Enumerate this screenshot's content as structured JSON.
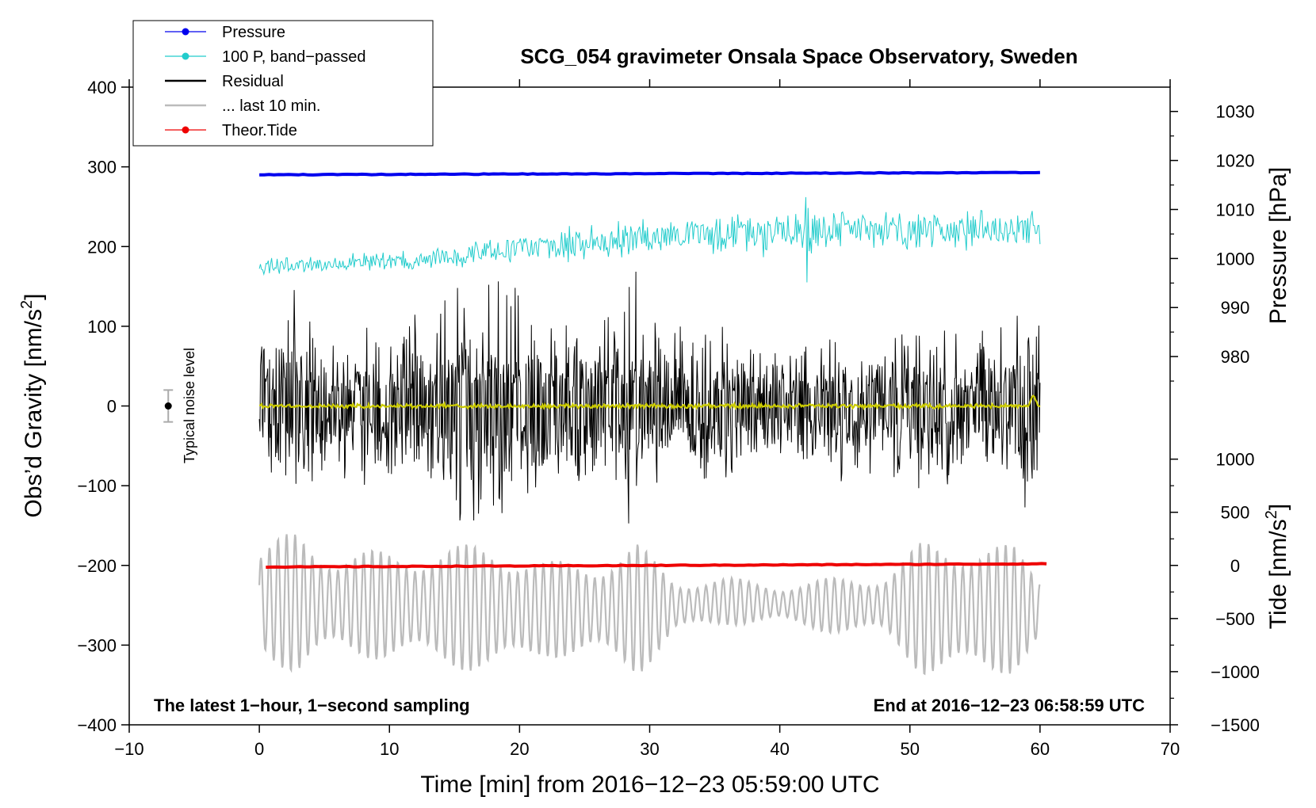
{
  "chart_data": {
    "type": "line",
    "title": "SCG_054 gravimeter Onsala Space Observatory, Sweden",
    "xlabel": "Time [min] from 2016−12−23 05:59:00 UTC",
    "ylabel_left": "Obs’d Gravity [nm/s",
    "ylabel_left_sup": "2",
    "ylabel_left_end": "]",
    "ylabel_right_pressure": "Pressure [hPa]",
    "ylabel_right_tide": "Tide [nm/s",
    "ylabel_right_tide_sup": "2",
    "ylabel_right_tide_end": "]",
    "xlim": [
      -10,
      70
    ],
    "ylim": [
      -400,
      400
    ],
    "x_ticks": [
      {
        "value": -10,
        "label": "−10"
      },
      {
        "value": 0,
        "label": "0"
      },
      {
        "value": 10,
        "label": "10"
      },
      {
        "value": 20,
        "label": "20"
      },
      {
        "value": 30,
        "label": "30"
      },
      {
        "value": 40,
        "label": "40"
      },
      {
        "value": 50,
        "label": "50"
      },
      {
        "value": 60,
        "label": "60"
      },
      {
        "value": 70,
        "label": "70"
      }
    ],
    "y_ticks": [
      {
        "value": 400,
        "label": "400"
      },
      {
        "value": 300,
        "label": "300"
      },
      {
        "value": 200,
        "label": "200"
      },
      {
        "value": 100,
        "label": "100"
      },
      {
        "value": 0,
        "label": "0"
      },
      {
        "value": -100,
        "label": "−100"
      },
      {
        "value": -200,
        "label": "−200"
      },
      {
        "value": -300,
        "label": "−300"
      },
      {
        "value": -400,
        "label": "−400"
      }
    ],
    "pressure_axis": {
      "gravity_per_hpa": 6.15,
      "gravity_at_1000": 185,
      "ticks": [
        {
          "value": 980,
          "label": "980"
        },
        {
          "value": 990,
          "label": "990"
        },
        {
          "value": 1000,
          "label": "1000"
        },
        {
          "value": 1010,
          "label": "1010"
        },
        {
          "value": 1020,
          "label": "1020"
        },
        {
          "value": 1030,
          "label": "1030"
        }
      ]
    },
    "tide_axis": {
      "gravity_per_unit": 0.1333,
      "gravity_at_zero": -200,
      "ticks": [
        {
          "value": 1000,
          "label": "1000"
        },
        {
          "value": 500,
          "label": "500"
        },
        {
          "value": 0,
          "label": "0"
        },
        {
          "value": -500,
          "label": "−500"
        },
        {
          "value": -1000,
          "label": "−1000"
        },
        {
          "value": -1500,
          "label": "−1500"
        }
      ]
    },
    "legend": {
      "placement": "top-left",
      "entries": [
        {
          "label": "Pressure",
          "color": "#0000ee",
          "marker": true
        },
        {
          "label": "100 P, band−passed",
          "color": "#22cccc",
          "marker": true
        },
        {
          "label": "Residual",
          "color": "#000000",
          "marker": false
        },
        {
          "label": "... last 10 min.",
          "color": "#bbbbbb",
          "marker": false
        },
        {
          "label": "Theor.Tide",
          "color": "#ee0000",
          "marker": true
        }
      ]
    },
    "series": [
      {
        "name": "Pressure",
        "color": "#0000ee",
        "kind": "trend",
        "x_range": [
          0,
          60
        ],
        "y_start": 1017.8,
        "y_end": 1018.3,
        "unit": "hPa",
        "gravity_start": 290,
        "gravity_end": 293
      },
      {
        "name": "100 P, band−passed",
        "color": "#22cccc",
        "kind": "noise",
        "x_range": [
          0,
          60
        ],
        "trend": [
          [
            0,
            175
          ],
          [
            10,
            180
          ],
          [
            20,
            198
          ],
          [
            30,
            210
          ],
          [
            40,
            222
          ],
          [
            50,
            220
          ],
          [
            60,
            222
          ]
        ],
        "amp": [
          [
            0,
            8
          ],
          [
            10,
            9
          ],
          [
            20,
            13
          ],
          [
            30,
            18
          ],
          [
            40,
            22
          ],
          [
            50,
            17
          ],
          [
            60,
            15
          ]
        ],
        "spikes": [
          {
            "x": 42.0,
            "up": 262,
            "down": 155
          },
          {
            "x": 54.3,
            "up": 256,
            "down": 195
          }
        ]
      },
      {
        "name": "Residual",
        "color": "#000000",
        "kind": "noise",
        "x_range": [
          0,
          60
        ],
        "trend": [
          [
            0,
            0
          ],
          [
            60,
            0
          ]
        ],
        "amp": [
          [
            0,
            60
          ],
          [
            3,
            100
          ],
          [
            5,
            55
          ],
          [
            8,
            75
          ],
          [
            12,
            85
          ],
          [
            16,
            115
          ],
          [
            18,
            120
          ],
          [
            21,
            85
          ],
          [
            24,
            70
          ],
          [
            27,
            80
          ],
          [
            29,
            115
          ],
          [
            31,
            65
          ],
          [
            35,
            70
          ],
          [
            40,
            55
          ],
          [
            44,
            65
          ],
          [
            50,
            60
          ],
          [
            52,
            80
          ],
          [
            54,
            70
          ],
          [
            57,
            65
          ],
          [
            59,
            95
          ],
          [
            60,
            80
          ]
        ]
      },
      {
        "name": "Residual (filtered)",
        "color": "#cccc00",
        "kind": "noise",
        "x_range": [
          0,
          60
        ],
        "trend": [
          [
            0,
            0
          ],
          [
            60,
            0
          ]
        ],
        "amp": [
          [
            0,
            2
          ],
          [
            60,
            2
          ]
        ],
        "bump": {
          "x": 59.5,
          "height": 12
        }
      },
      {
        "name": "... last 10 min.",
        "color": "#bbbbbb",
        "kind": "oscillation",
        "x_range": [
          0,
          60
        ],
        "center": [
          [
            0,
            -245
          ],
          [
            10,
            -250
          ],
          [
            20,
            -255
          ],
          [
            30,
            -255
          ],
          [
            36,
            -245
          ],
          [
            42,
            -250
          ],
          [
            48,
            -250
          ],
          [
            52,
            -255
          ],
          [
            60,
            -255
          ]
        ],
        "amp": [
          [
            0,
            65
          ],
          [
            3,
            95
          ],
          [
            6,
            65
          ],
          [
            10,
            70
          ],
          [
            14,
            75
          ],
          [
            18,
            85
          ],
          [
            22,
            60
          ],
          [
            26,
            65
          ],
          [
            29,
            85
          ],
          [
            32,
            35
          ],
          [
            36,
            30
          ],
          [
            40,
            25
          ],
          [
            44,
            35
          ],
          [
            48,
            40
          ],
          [
            51,
            85
          ],
          [
            54,
            90
          ],
          [
            58,
            80
          ],
          [
            60,
            45
          ]
        ]
      },
      {
        "name": "Theor.Tide",
        "color": "#ee0000",
        "kind": "trend",
        "x_range": [
          0.5,
          60.5
        ],
        "y_start": -15,
        "y_end": 15,
        "unit": "nm/s2",
        "gravity_start": -202,
        "gravity_end": -198
      }
    ],
    "annotations": {
      "bottom_left": "The latest 1−hour, 1−second sampling",
      "bottom_right": "End at 2016−12−23 06:58:59 UTC",
      "noise_label": "Typical noise level",
      "noise_bar": {
        "x": -7,
        "center": 0,
        "half_range": 20
      }
    }
  }
}
